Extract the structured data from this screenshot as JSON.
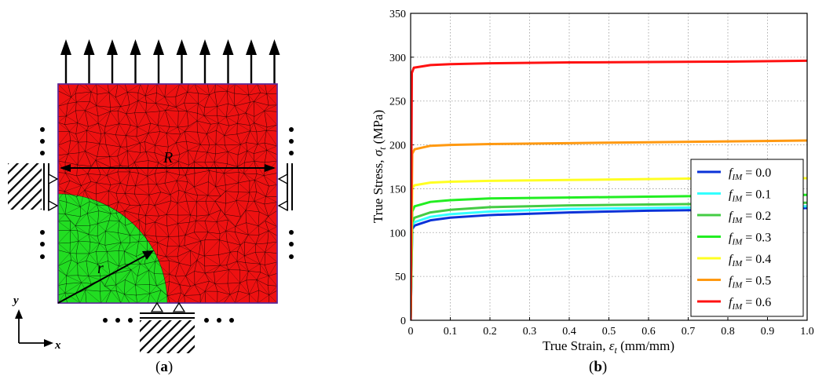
{
  "panels": {
    "a": {
      "caption_label": "a",
      "labels": {
        "R": "R",
        "r": "r",
        "y": "y",
        "x": "x"
      },
      "colors": {
        "matrix": "#ee1111",
        "inclusion": "#22dd22",
        "mesh_line": "#000000"
      }
    },
    "b": {
      "caption_label": "b"
    }
  },
  "chart_data": {
    "type": "line",
    "xlabel": "True Strain, εt (mm/mm)",
    "ylabel": "True Stress, σt (MPa)",
    "xlabel_main": "True Strain, ",
    "xlabel_sym": "ε",
    "xlabel_sub": "t",
    "xlabel_unit": " (mm/mm)",
    "ylabel_main": "True Stress, ",
    "ylabel_sym": "σ",
    "ylabel_sub": "t",
    "ylabel_unit": " (MPa)",
    "xlim": [
      0,
      1.0
    ],
    "ylim": [
      0,
      350
    ],
    "xticks": [
      "0",
      "0.1",
      "0.2",
      "0.3",
      "0.4",
      "0.5",
      "0.6",
      "0.7",
      "0.8",
      "0.9",
      "1.0"
    ],
    "yticks": [
      "0",
      "50",
      "100",
      "150",
      "200",
      "250",
      "300",
      "350"
    ],
    "grid": true,
    "legend_position": "right",
    "series": [
      {
        "name": "fIM = 0.0",
        "sub": "IM",
        "val": "0.0",
        "color": "#0a32d8",
        "x": [
          0,
          0.004,
          0.01,
          0.05,
          0.1,
          0.2,
          0.4,
          0.6,
          0.8,
          1.0
        ],
        "y": [
          0,
          104,
          108,
          114,
          117,
          120,
          123,
          125,
          126,
          128
        ]
      },
      {
        "name": "fIM = 0.1",
        "sub": "IM",
        "val": "0.1",
        "color": "#33ffff",
        "x": [
          0,
          0.004,
          0.01,
          0.05,
          0.1,
          0.2,
          0.4,
          0.6,
          0.8,
          1.0
        ],
        "y": [
          0,
          108,
          112,
          118,
          121,
          124,
          127,
          128,
          129,
          130
        ]
      },
      {
        "name": "fIM = 0.2",
        "sub": "IM",
        "val": "0.2",
        "color": "#44cc44",
        "x": [
          0,
          0.004,
          0.01,
          0.05,
          0.1,
          0.2,
          0.4,
          0.6,
          0.8,
          1.0
        ],
        "y": [
          0,
          112,
          117,
          123,
          126,
          129,
          131,
          132,
          133,
          134
        ]
      },
      {
        "name": "fIM = 0.3",
        "sub": "IM",
        "val": "0.3",
        "color": "#22ee22",
        "x": [
          0,
          0.004,
          0.01,
          0.05,
          0.1,
          0.2,
          0.4,
          0.6,
          0.8,
          1.0
        ],
        "y": [
          0,
          124,
          130,
          135,
          137,
          139,
          140,
          141,
          142,
          143
        ]
      },
      {
        "name": "fIM = 0.4",
        "sub": "IM",
        "val": "0.4",
        "color": "#ffff22",
        "x": [
          0,
          0.004,
          0.01,
          0.05,
          0.1,
          0.2,
          0.4,
          0.6,
          0.8,
          1.0
        ],
        "y": [
          0,
          151,
          154,
          157,
          158,
          159,
          160,
          161,
          162,
          162
        ]
      },
      {
        "name": "fIM = 0.5",
        "sub": "IM",
        "val": "0.5",
        "color": "#ff9911",
        "x": [
          0,
          0.004,
          0.01,
          0.05,
          0.1,
          0.2,
          0.4,
          0.6,
          0.8,
          1.0
        ],
        "y": [
          0,
          190,
          195,
          199,
          200,
          201,
          202,
          203,
          204,
          205
        ]
      },
      {
        "name": "fIM = 0.6",
        "sub": "IM",
        "val": "0.6",
        "color": "#ff1111",
        "x": [
          0,
          0.003,
          0.008,
          0.05,
          0.1,
          0.2,
          0.4,
          0.6,
          0.8,
          1.0
        ],
        "y": [
          0,
          282,
          288,
          291,
          292,
          293,
          294,
          294.5,
          295,
          296
        ]
      }
    ]
  }
}
